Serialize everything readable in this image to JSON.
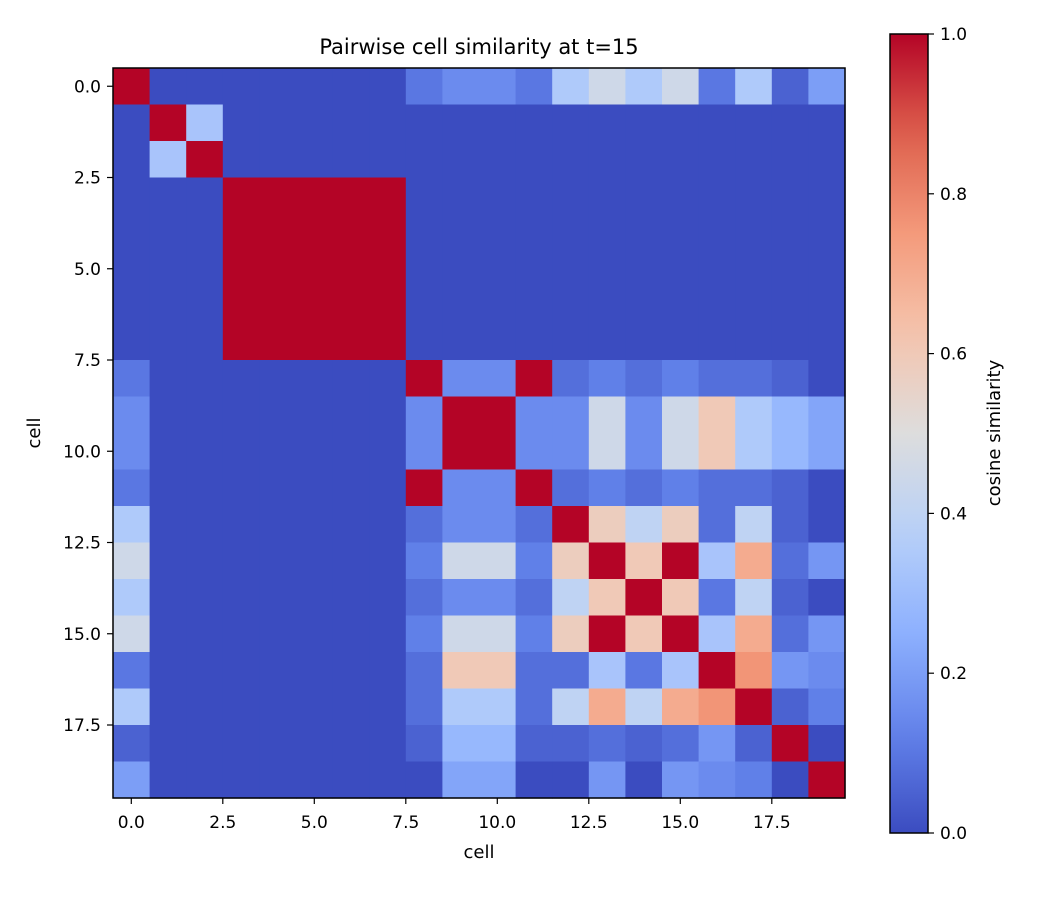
{
  "chart_data": {
    "type": "heatmap",
    "title": "Pairwise cell similarity at t=15",
    "xlabel": "cell",
    "ylabel": "cell",
    "xlim": [
      -0.5,
      19.5
    ],
    "ylim": [
      19.5,
      -0.5
    ],
    "x_ticks": [
      0,
      2.5,
      5,
      7.5,
      10,
      12.5,
      15,
      17.5
    ],
    "x_tick_labels": [
      "0.0",
      "2.5",
      "5.0",
      "7.5",
      "10.0",
      "12.5",
      "15.0",
      "17.5"
    ],
    "y_ticks": [
      0,
      2.5,
      5,
      7.5,
      10,
      12.5,
      15,
      17.5
    ],
    "y_tick_labels": [
      "0.0",
      "2.5",
      "5.0",
      "7.5",
      "10.0",
      "12.5",
      "15.0",
      "17.5"
    ],
    "colormap": "coolwarm",
    "colorbar": {
      "label": "cosine similarity",
      "range": [
        0,
        1
      ],
      "ticks": [
        0,
        0.2,
        0.4,
        0.6,
        0.8,
        1.0
      ],
      "tick_labels": [
        "0.0",
        "0.2",
        "0.4",
        "0.6",
        "0.8",
        "1.0"
      ]
    },
    "grid": false,
    "matrix": [
      [
        1.0,
        0.0,
        0.0,
        0.0,
        0.0,
        0.0,
        0.0,
        0.0,
        0.1,
        0.15,
        0.15,
        0.1,
        0.35,
        0.45,
        0.35,
        0.45,
        0.1,
        0.35,
        0.05,
        0.2
      ],
      [
        0.0,
        1.0,
        0.33,
        0.0,
        0.0,
        0.0,
        0.0,
        0.0,
        0.0,
        0.0,
        0.0,
        0.0,
        0.0,
        0.0,
        0.0,
        0.0,
        0.0,
        0.0,
        0.0,
        0.0
      ],
      [
        0.0,
        0.33,
        1.0,
        0.0,
        0.0,
        0.0,
        0.0,
        0.0,
        0.0,
        0.0,
        0.0,
        0.0,
        0.0,
        0.0,
        0.0,
        0.0,
        0.0,
        0.0,
        0.0,
        0.0
      ],
      [
        0.0,
        0.0,
        0.0,
        1.0,
        1.0,
        1.0,
        1.0,
        1.0,
        0.0,
        0.0,
        0.0,
        0.0,
        0.0,
        0.0,
        0.0,
        0.0,
        0.0,
        0.0,
        0.0,
        0.0
      ],
      [
        0.0,
        0.0,
        0.0,
        1.0,
        1.0,
        1.0,
        1.0,
        1.0,
        0.0,
        0.0,
        0.0,
        0.0,
        0.0,
        0.0,
        0.0,
        0.0,
        0.0,
        0.0,
        0.0,
        0.0
      ],
      [
        0.0,
        0.0,
        0.0,
        1.0,
        1.0,
        1.0,
        1.0,
        1.0,
        0.0,
        0.0,
        0.0,
        0.0,
        0.0,
        0.0,
        0.0,
        0.0,
        0.0,
        0.0,
        0.0,
        0.0
      ],
      [
        0.0,
        0.0,
        0.0,
        1.0,
        1.0,
        1.0,
        1.0,
        1.0,
        0.0,
        0.0,
        0.0,
        0.0,
        0.0,
        0.0,
        0.0,
        0.0,
        0.0,
        0.0,
        0.0,
        0.0
      ],
      [
        0.0,
        0.0,
        0.0,
        1.0,
        1.0,
        1.0,
        1.0,
        1.0,
        0.0,
        0.0,
        0.0,
        0.0,
        0.0,
        0.0,
        0.0,
        0.0,
        0.0,
        0.0,
        0.0,
        0.0
      ],
      [
        0.1,
        0.0,
        0.0,
        0.0,
        0.0,
        0.0,
        0.0,
        0.0,
        1.0,
        0.15,
        0.15,
        1.0,
        0.08,
        0.12,
        0.08,
        0.12,
        0.08,
        0.08,
        0.05,
        0.0
      ],
      [
        0.15,
        0.0,
        0.0,
        0.0,
        0.0,
        0.0,
        0.0,
        0.0,
        0.15,
        1.0,
        1.0,
        0.15,
        0.15,
        0.45,
        0.15,
        0.45,
        0.6,
        0.35,
        0.28,
        0.22
      ],
      [
        0.15,
        0.0,
        0.0,
        0.0,
        0.0,
        0.0,
        0.0,
        0.0,
        0.15,
        1.0,
        1.0,
        0.15,
        0.15,
        0.45,
        0.15,
        0.45,
        0.6,
        0.35,
        0.28,
        0.22
      ],
      [
        0.1,
        0.0,
        0.0,
        0.0,
        0.0,
        0.0,
        0.0,
        0.0,
        1.0,
        0.15,
        0.15,
        1.0,
        0.08,
        0.12,
        0.08,
        0.12,
        0.08,
        0.08,
        0.05,
        0.0
      ],
      [
        0.35,
        0.0,
        0.0,
        0.0,
        0.0,
        0.0,
        0.0,
        0.0,
        0.08,
        0.15,
        0.15,
        0.08,
        1.0,
        0.58,
        0.4,
        0.58,
        0.08,
        0.4,
        0.05,
        0.0
      ],
      [
        0.45,
        0.0,
        0.0,
        0.0,
        0.0,
        0.0,
        0.0,
        0.0,
        0.12,
        0.45,
        0.45,
        0.12,
        0.58,
        1.0,
        0.6,
        1.0,
        0.33,
        0.7,
        0.08,
        0.18
      ],
      [
        0.35,
        0.0,
        0.0,
        0.0,
        0.0,
        0.0,
        0.0,
        0.0,
        0.08,
        0.15,
        0.15,
        0.08,
        0.4,
        0.6,
        1.0,
        0.6,
        0.1,
        0.4,
        0.05,
        0.0
      ],
      [
        0.45,
        0.0,
        0.0,
        0.0,
        0.0,
        0.0,
        0.0,
        0.0,
        0.12,
        0.45,
        0.45,
        0.12,
        0.58,
        1.0,
        0.6,
        1.0,
        0.33,
        0.7,
        0.08,
        0.18
      ],
      [
        0.1,
        0.0,
        0.0,
        0.0,
        0.0,
        0.0,
        0.0,
        0.0,
        0.08,
        0.6,
        0.6,
        0.08,
        0.08,
        0.33,
        0.1,
        0.33,
        1.0,
        0.76,
        0.18,
        0.15
      ],
      [
        0.35,
        0.0,
        0.0,
        0.0,
        0.0,
        0.0,
        0.0,
        0.0,
        0.08,
        0.35,
        0.35,
        0.08,
        0.4,
        0.7,
        0.4,
        0.7,
        0.76,
        1.0,
        0.05,
        0.12
      ],
      [
        0.05,
        0.0,
        0.0,
        0.0,
        0.0,
        0.0,
        0.0,
        0.0,
        0.05,
        0.28,
        0.28,
        0.05,
        0.05,
        0.08,
        0.05,
        0.08,
        0.18,
        0.05,
        1.0,
        0.0
      ],
      [
        0.2,
        0.0,
        0.0,
        0.0,
        0.0,
        0.0,
        0.0,
        0.0,
        0.0,
        0.22,
        0.22,
        0.0,
        0.0,
        0.18,
        0.0,
        0.18,
        0.15,
        0.12,
        0.0,
        1.0
      ]
    ]
  }
}
